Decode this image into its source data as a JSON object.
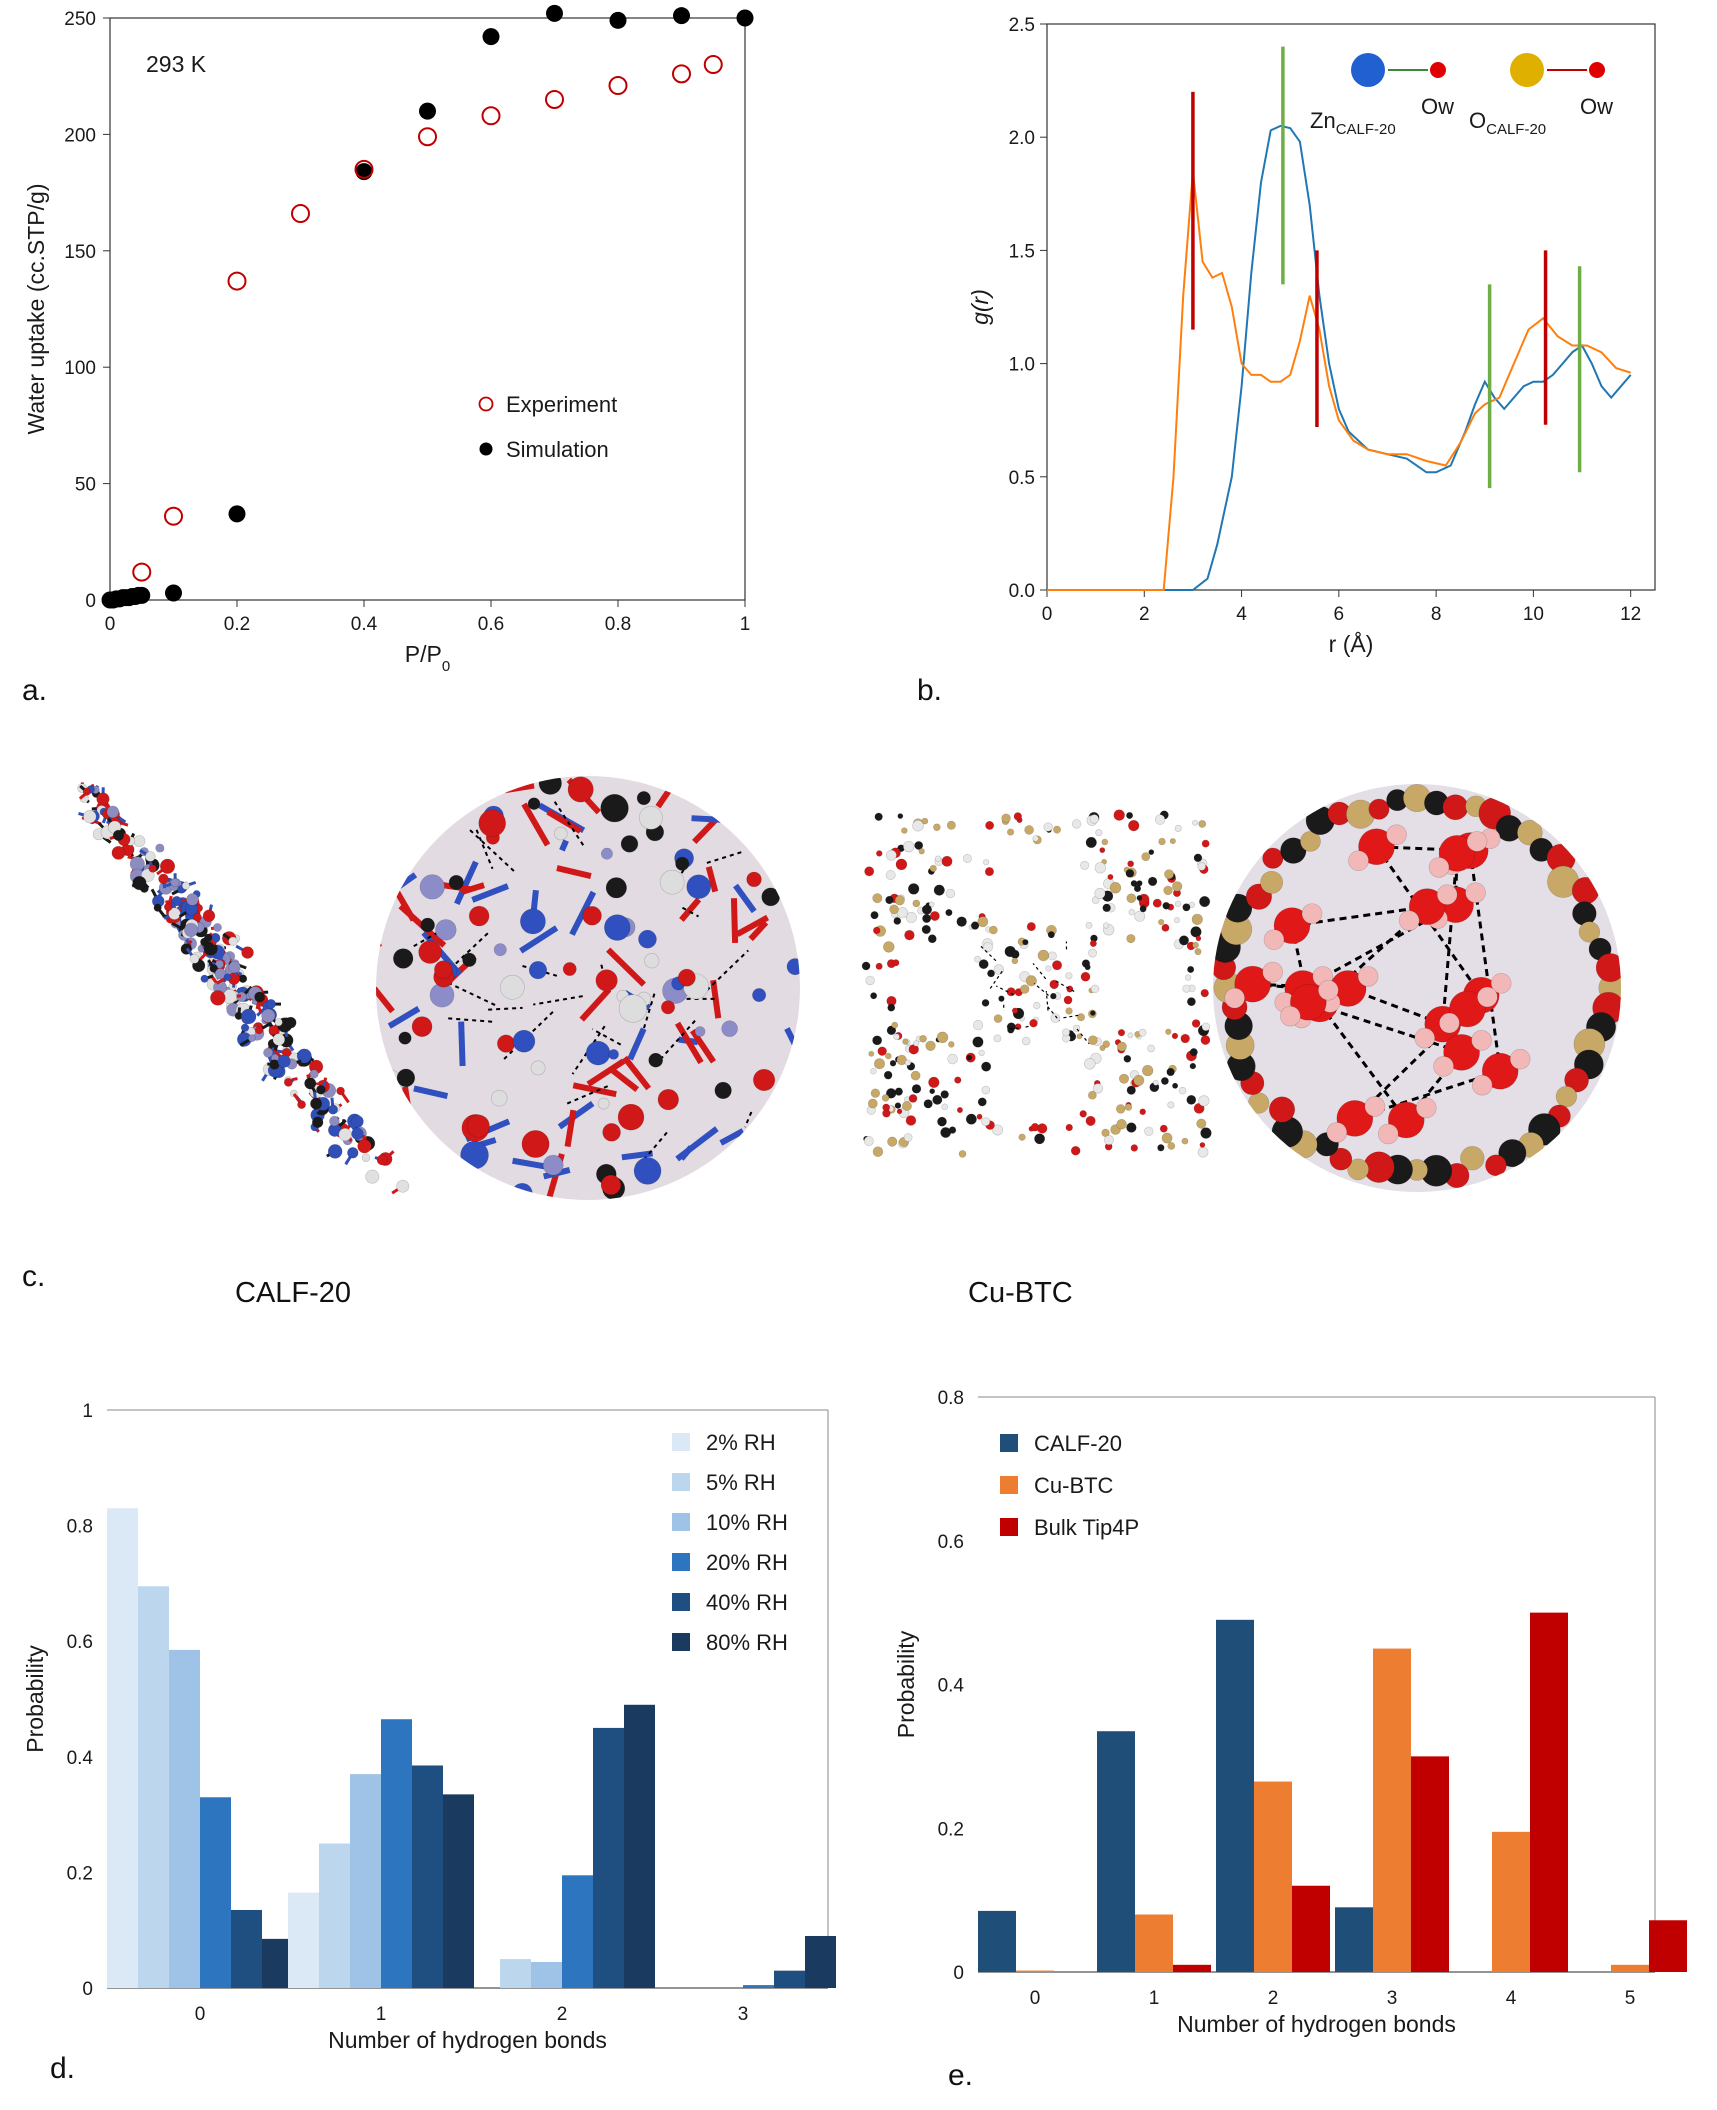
{
  "panel_labels": {
    "a": "a.",
    "b": "b.",
    "c": "c.",
    "d": "d.",
    "e": "e."
  },
  "panel_c": {
    "left_label": "CALF-20",
    "right_label": "Cu-BTC"
  },
  "colors": {
    "experiment": "#c00000",
    "simulation": "#000000",
    "zn": "#1f77b4",
    "o": "#ff7f0e",
    "green_marker": "#70ad47",
    "red_marker": "#c00000"
  },
  "chart_data": [
    {
      "id": "a",
      "type": "scatter",
      "xlabel": "P/P",
      "xlabel_sub": "0",
      "ylabel": "Water uptake (cc.STP/g)",
      "annotation": "293 K",
      "xlim": [
        0,
        1
      ],
      "ylim": [
        0,
        250
      ],
      "xticks": [
        0,
        0.2,
        0.4,
        0.6,
        0.8,
        1
      ],
      "xtick_labels": [
        "0",
        "0.2",
        "0.4",
        "0.6",
        "0.8",
        "1"
      ],
      "yticks": [
        0,
        50,
        100,
        150,
        200,
        250
      ],
      "yticks_labels": [
        "0",
        "50",
        "100",
        "150",
        "200",
        "250"
      ],
      "legend": "center-right",
      "series": [
        {
          "name": "Experiment",
          "marker": "open-circle",
          "x": [
            0.05,
            0.1,
            0.2,
            0.3,
            0.4,
            0.5,
            0.6,
            0.7,
            0.8,
            0.9,
            0.95
          ],
          "y": [
            12,
            36,
            137,
            166,
            185,
            199,
            208,
            215,
            221,
            226,
            230
          ]
        },
        {
          "name": "Simulation",
          "marker": "filled-circle",
          "x": [
            0,
            0.005,
            0.01,
            0.015,
            0.02,
            0.025,
            0.03,
            0.035,
            0.04,
            0.045,
            0.05,
            0.1,
            0.2,
            0.4,
            0.5,
            0.6,
            0.7,
            0.8,
            0.9,
            1.0
          ],
          "y": [
            0,
            0,
            0.5,
            0.5,
            1,
            1,
            1,
            1.5,
            1.5,
            2,
            2,
            3,
            37,
            184,
            210,
            242,
            252,
            249,
            251,
            250
          ]
        }
      ]
    },
    {
      "id": "b",
      "type": "line",
      "xlabel": "r (Å)",
      "ylabel": "g(r)",
      "xlim": [
        0,
        12.5
      ],
      "ylim": [
        0,
        2.5
      ],
      "xticks": [
        0,
        2,
        4,
        6,
        8,
        10,
        12
      ],
      "xtick_labels": [
        "0",
        "2",
        "4",
        "6",
        "8",
        "10",
        "12"
      ],
      "yticks": [
        0,
        0.5,
        1,
        1.5,
        2,
        2.5
      ],
      "ytick_labels": [
        "0.0",
        "0.5",
        "1.0",
        "1.5",
        "2.0",
        "2.5"
      ],
      "legend_items": [
        {
          "main": "Zn",
          "sub": "CALF-20",
          "partner": "Ow",
          "atom_color": "#2060d0"
        },
        {
          "main": "O",
          "sub": "CALF-20",
          "partner": "Ow",
          "atom_color": "#e0b000"
        }
      ],
      "series": [
        {
          "color": "#1f77b4",
          "x": [
            0,
            3.0,
            3.3,
            3.5,
            3.8,
            4.0,
            4.2,
            4.4,
            4.6,
            4.8,
            5.0,
            5.2,
            5.4,
            5.6,
            5.8,
            6.0,
            6.2,
            6.6,
            7.0,
            7.4,
            7.8,
            8.0,
            8.3,
            8.6,
            8.8,
            9.0,
            9.2,
            9.4,
            9.6,
            9.8,
            10.0,
            10.2,
            10.4,
            10.6,
            10.8,
            11.0,
            11.2,
            11.4,
            11.6,
            11.8,
            12.0
          ],
          "y": [
            0,
            0,
            0.05,
            0.2,
            0.5,
            0.9,
            1.4,
            1.8,
            2.03,
            2.05,
            2.04,
            1.98,
            1.7,
            1.3,
            1.0,
            0.8,
            0.7,
            0.62,
            0.6,
            0.58,
            0.52,
            0.52,
            0.55,
            0.7,
            0.82,
            0.92,
            0.85,
            0.8,
            0.85,
            0.9,
            0.92,
            0.92,
            0.95,
            1.0,
            1.05,
            1.08,
            1.0,
            0.9,
            0.85,
            0.9,
            0.95
          ]
        },
        {
          "color": "#ff7f0e",
          "x": [
            0,
            2.4,
            2.6,
            2.8,
            3.0,
            3.2,
            3.4,
            3.6,
            3.8,
            4.0,
            4.2,
            4.4,
            4.6,
            4.8,
            5.0,
            5.2,
            5.4,
            5.6,
            5.8,
            6.0,
            6.3,
            6.6,
            7.0,
            7.4,
            7.8,
            8.2,
            8.5,
            8.8,
            9.0,
            9.3,
            9.6,
            9.9,
            10.2,
            10.5,
            10.8,
            11.1,
            11.4,
            11.7,
            12.0
          ],
          "y": [
            0,
            0,
            0.5,
            1.3,
            1.85,
            1.45,
            1.38,
            1.4,
            1.25,
            1.0,
            0.95,
            0.95,
            0.92,
            0.92,
            0.95,
            1.1,
            1.3,
            1.15,
            0.9,
            0.75,
            0.66,
            0.62,
            0.6,
            0.6,
            0.57,
            0.55,
            0.65,
            0.78,
            0.82,
            0.85,
            1.0,
            1.15,
            1.2,
            1.12,
            1.08,
            1.08,
            1.05,
            0.98,
            0.96
          ]
        }
      ],
      "markers": [
        {
          "x": 3.0,
          "y0": 1.15,
          "y1": 2.2,
          "color": "#c00000"
        },
        {
          "x": 4.85,
          "y0": 1.35,
          "y1": 2.4,
          "color": "#70ad47"
        },
        {
          "x": 5.55,
          "y0": 0.72,
          "y1": 1.5,
          "color": "#c00000"
        },
        {
          "x": 9.1,
          "y0": 0.45,
          "y1": 1.35,
          "color": "#70ad47"
        },
        {
          "x": 10.25,
          "y0": 0.73,
          "y1": 1.5,
          "color": "#c00000"
        },
        {
          "x": 10.95,
          "y0": 0.52,
          "y1": 1.43,
          "color": "#70ad47"
        }
      ]
    },
    {
      "id": "d",
      "type": "bar",
      "xlabel": "Number of hydrogen bonds",
      "ylabel": "Probability",
      "categories": [
        "0",
        "1",
        "2",
        "3"
      ],
      "ylim": [
        0,
        1
      ],
      "yticks": [
        0,
        0.2,
        0.4,
        0.6,
        0.8,
        1
      ],
      "ytick_labels": [
        "0",
        "0.2",
        "0.4",
        "0.6",
        "0.8",
        "1"
      ],
      "legend": "top-right",
      "series": [
        {
          "name": "2% RH",
          "color": "#dbe8f6",
          "values": [
            0.83,
            0.165,
            0,
            0
          ]
        },
        {
          "name": "5% RH",
          "color": "#bcd6ee",
          "values": [
            0.695,
            0.25,
            0.05,
            0
          ]
        },
        {
          "name": "10% RH",
          "color": "#9fc3e7",
          "values": [
            0.585,
            0.37,
            0.045,
            0
          ]
        },
        {
          "name": "20% RH",
          "color": "#2e75c0",
          "values": [
            0.33,
            0.465,
            0.195,
            0.005
          ]
        },
        {
          "name": "40% RH",
          "color": "#1f4f80",
          "values": [
            0.135,
            0.385,
            0.45,
            0.03
          ]
        },
        {
          "name": "80% RH",
          "color": "#1a3a60",
          "values": [
            0.085,
            0.335,
            0.49,
            0.09
          ]
        }
      ]
    },
    {
      "id": "e",
      "type": "bar",
      "xlabel": "Number of hydrogen bonds",
      "ylabel": "Probability",
      "categories": [
        "0",
        "1",
        "2",
        "3",
        "4",
        "5"
      ],
      "ylim": [
        0,
        0.8
      ],
      "yticks": [
        0,
        0.2,
        0.4,
        0.6,
        0.8
      ],
      "ytick_labels": [
        "0",
        "0.2",
        "0.4",
        "0.6",
        "0.8"
      ],
      "legend": "top-left",
      "series": [
        {
          "name": "CALF-20",
          "color": "#1f4e79",
          "values": [
            0.085,
            0.335,
            0.49,
            0.09,
            0,
            0
          ]
        },
        {
          "name": "Cu-BTC",
          "color": "#ed7d31",
          "values": [
            0.002,
            0.08,
            0.265,
            0.45,
            0.195,
            0.01
          ]
        },
        {
          "name": "Bulk Tip4P",
          "color": "#c00000",
          "values": [
            0,
            0.01,
            0.12,
            0.3,
            0.5,
            0.072
          ]
        }
      ]
    }
  ]
}
